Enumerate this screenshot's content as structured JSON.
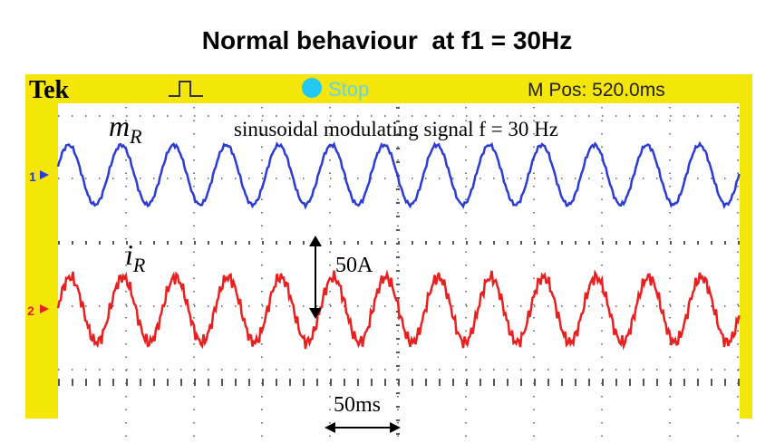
{
  "header": {
    "title": "Normal behaviour  at f1 = 30Hz"
  },
  "scope": {
    "brand": "Tek",
    "status": "Stop",
    "position": "M Pos: 520.0ms",
    "channel_1": "1",
    "channel_2": "2",
    "annotation": "sinusoidal modulating signal f = 30 Hz",
    "trace_1_label": {
      "symbol": "m",
      "subscript": "R"
    },
    "trace_2_label": {
      "symbol": "i",
      "subscript": "R"
    },
    "amplitude_scale": "50A",
    "time_scale": "50ms"
  }
}
